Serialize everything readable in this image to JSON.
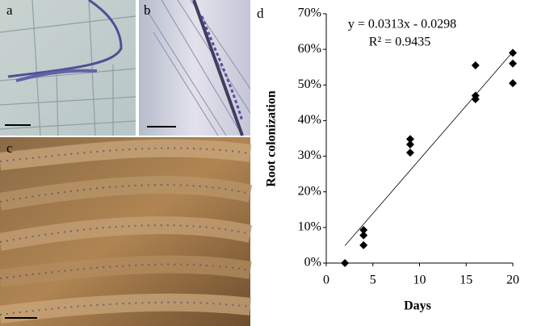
{
  "panel_labels": [
    "a",
    "b",
    "c",
    "d"
  ],
  "chart_data": {
    "type": "scatter",
    "x_label": "Days",
    "y_label": "Root colonization",
    "annotations": [
      "y = 0.0313x - 0.0298",
      "R² = 0.9435"
    ],
    "x": [
      2,
      4,
      4,
      4,
      9,
      9,
      9,
      16,
      16,
      16,
      20,
      20,
      20
    ],
    "values": [
      0,
      9.3,
      7.8,
      5.0,
      34.8,
      33.3,
      31.0,
      55.5,
      47.0,
      46.0,
      59.0,
      56.0,
      50.5
    ],
    "color": "#000000",
    "xlim": [
      0,
      20
    ],
    "xticks": [
      0,
      5,
      10,
      15,
      20
    ],
    "ylim": [
      0,
      70
    ],
    "yticks": [
      {
        "value": 0,
        "label": "0%"
      },
      {
        "value": 10,
        "label": "10%"
      },
      {
        "value": 20,
        "label": "20%"
      },
      {
        "value": 30,
        "label": "30%"
      },
      {
        "value": 40,
        "label": "40%"
      },
      {
        "value": 50,
        "label": "50%"
      },
      {
        "value": 60,
        "label": "60%"
      },
      {
        "value": 70,
        "label": "70%"
      }
    ],
    "trendline": true
  }
}
